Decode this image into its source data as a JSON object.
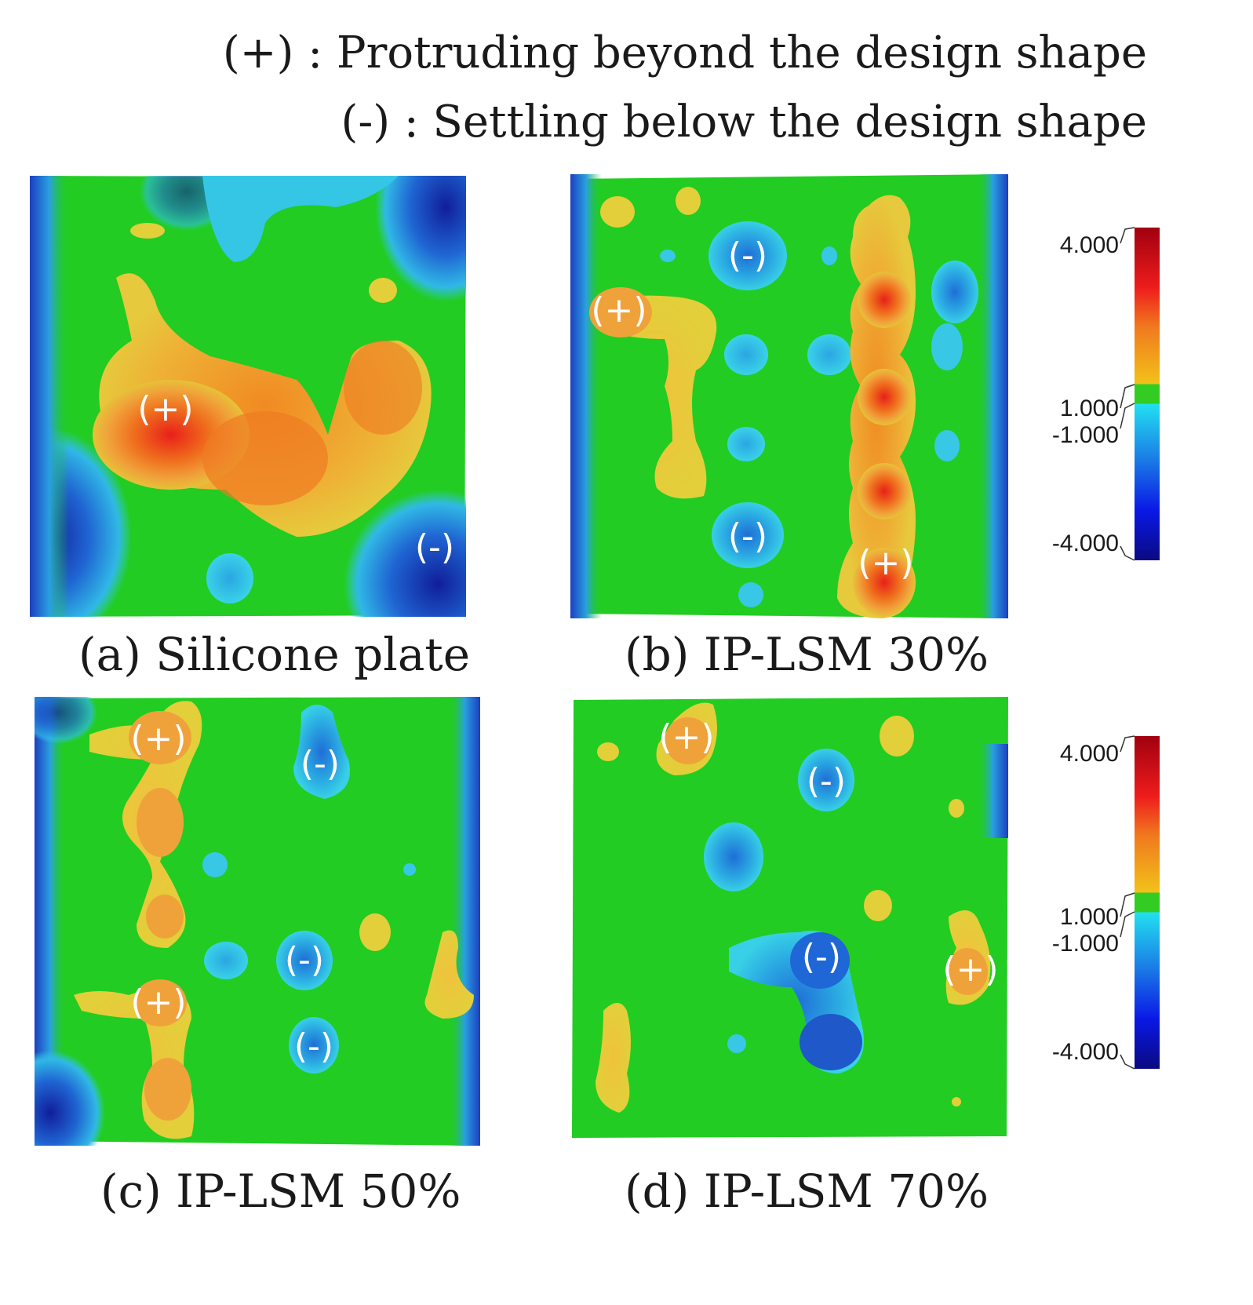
{
  "legend": {
    "plus_line": "(+) : Protruding beyond the design shape",
    "minus_line": "(-) : Settling below the design shape"
  },
  "panels": {
    "a": {
      "caption": "(a) Silicone plate"
    },
    "b": {
      "caption": "(b) IP-LSM 30%"
    },
    "c": {
      "caption": "(c) IP-LSM 50%"
    },
    "d": {
      "caption": "(d) IP-LSM 70%"
    }
  },
  "markers": {
    "plus": "(+)",
    "minus": "(-)"
  },
  "colorbar": {
    "max_label": "4.000",
    "upper_tol_label": "1.000",
    "lower_tol_label": "-1.000",
    "min_label": "-4.000"
  },
  "colors": {
    "green": "#22cc22",
    "yellow": "#e8c23a",
    "orange": "#f08a1e",
    "red": "#e8281e",
    "cyan": "#29c6e8",
    "blue": "#1f66d6",
    "darkblue": "#101a8c"
  }
}
